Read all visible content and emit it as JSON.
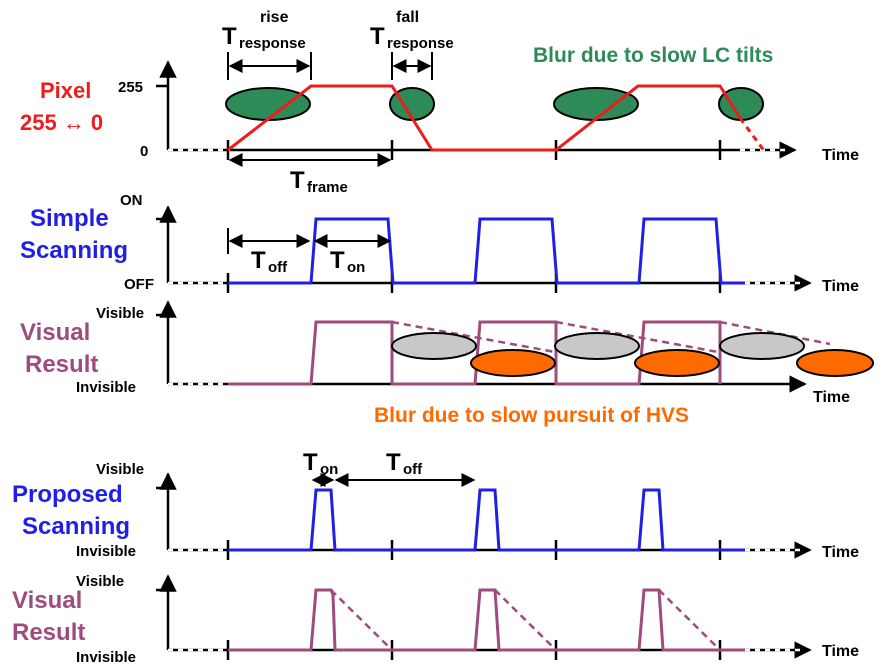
{
  "colors": {
    "axis": "#000000",
    "pixel": "#ee1c1c",
    "scan": "#1f1fe6",
    "visual": "#9e4b7f",
    "lc_blur": "#2e8b57",
    "hvs_blur": "#ff6a00",
    "gray_blur": "#c8c8c8"
  },
  "panel1": {
    "title_line1": "Pixel",
    "title_line2": "255 ↔ 0",
    "y_top": "255",
    "y_bottom": "0",
    "x_label": "Time",
    "t_rise_main": "T",
    "t_rise_sup": "rise",
    "t_rise_sub": "response",
    "t_fall_main": "T",
    "t_fall_sup": "fall",
    "t_fall_sub": "response",
    "t_frame_main": "T",
    "t_frame_sub": "frame",
    "note": "Blur due to slow LC tilts"
  },
  "panel2": {
    "title_line1": "Simple",
    "title_line2": "Scanning",
    "y_top": "ON",
    "y_bottom": "OFF",
    "x_label": "Time",
    "t_off_main": "T",
    "t_off_sub": "off",
    "t_on_main": "T",
    "t_on_sub": "on"
  },
  "panel3": {
    "title_line1": "Visual",
    "title_line2": "Result",
    "y_top": "Visible",
    "y_bottom": "Invisible",
    "x_label": "Time",
    "note": "Blur due to slow pursuit of HVS"
  },
  "panel4": {
    "title_line1": "Proposed",
    "title_line2": "Scanning",
    "y_top": "Visible",
    "y_bottom": "Invisible",
    "x_label": "Time",
    "t_on_main": "T",
    "t_on_sub": "on",
    "t_off_main": "T",
    "t_off_sub": "off"
  },
  "panel5": {
    "title_line1": "Visual",
    "title_line2": "Result",
    "y_top": "Visible",
    "y_bottom": "Invisible",
    "x_label": "Time"
  }
}
